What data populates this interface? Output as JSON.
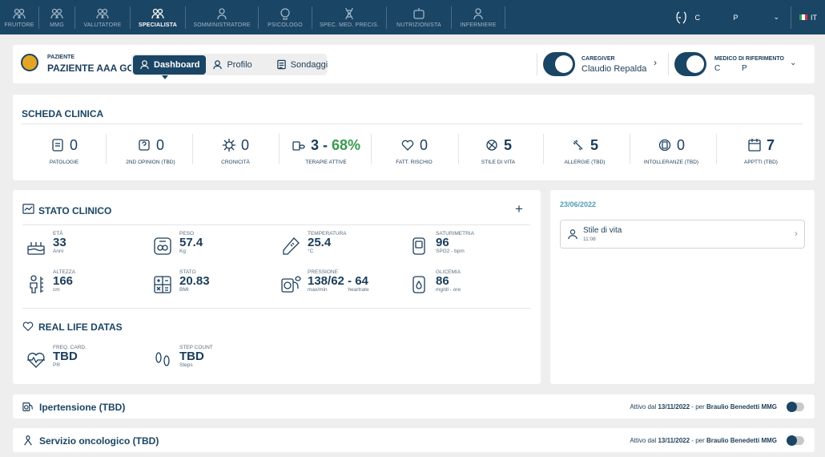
{
  "nav": {
    "items": [
      {
        "label": "FRUITORE",
        "icon": "group-icon"
      },
      {
        "label": "MMG",
        "icon": "doctors-icon"
      },
      {
        "label": "VALUTATORE",
        "icon": "evaluator-icon"
      },
      {
        "label": "SPECIALISTA",
        "icon": "specialist-icon",
        "active": true
      },
      {
        "label": "SOMMINISTRATORE",
        "icon": "nurse-icon"
      },
      {
        "label": "PSICOLOGO",
        "icon": "psychologist-icon"
      },
      {
        "label": "SPEC. MED. PRECIS.",
        "icon": "dna-icon"
      },
      {
        "label": "NUTRIZIONISTA",
        "icon": "nutrition-icon"
      },
      {
        "label": "INFERMIERE",
        "icon": "nurse-icon"
      }
    ],
    "user_first": "C",
    "user_last": "P",
    "lang": "IT"
  },
  "patient": {
    "label": "PAZIENTE",
    "name": "PAZIENTE AAA GOLD",
    "tabs": [
      "Dashboard",
      "Profilo",
      "Sondaggi"
    ],
    "caregiver_label": "CAREGIVER",
    "caregiver_name": "Claudio Repalda",
    "medico_label": "MEDICO DI RIFERIMENTO",
    "medico_first": "C",
    "medico_last": "P"
  },
  "scheda": {
    "title": "SCHEDA CLINICA",
    "stats": [
      {
        "label": "PATOLOGIE",
        "value": "0",
        "bold": false,
        "icon": "clipboard-icon"
      },
      {
        "label": "2ND OPINION (TBD)",
        "value": "0",
        "bold": false,
        "icon": "second-opinion-icon"
      },
      {
        "label": "CRONICITÀ",
        "value": "0",
        "bold": false,
        "icon": "virus-icon"
      },
      {
        "label": "TERAPIE ATTIVE",
        "value": "3 - ",
        "value2": "68%",
        "bold": true,
        "icon": "pills-icon"
      },
      {
        "label": "FATT. RISCHIO",
        "value": "0",
        "bold": false,
        "icon": "heart-risk-icon"
      },
      {
        "label": "STILE DI VITA",
        "value": "5",
        "bold": true,
        "icon": "lifestyle-icon"
      },
      {
        "label": "ALLERGIE (TBD)",
        "value": "5",
        "bold": true,
        "icon": "allergy-icon"
      },
      {
        "label": "INTOLLERANZE (TBD)",
        "value": "0",
        "bold": false,
        "icon": "intolerance-icon"
      },
      {
        "label": "APPTTI (TBD)",
        "value": "7",
        "bold": true,
        "icon": "calendar-icon"
      }
    ]
  },
  "stato": {
    "title": "STATO CLINICO",
    "add": "+",
    "metrics": [
      {
        "label": "ETÀ",
        "value": "33",
        "unit": "Anni",
        "icon": "cake-icon"
      },
      {
        "label": "PESO",
        "value": "57.4",
        "unit": "Kg",
        "icon": "scale-icon"
      },
      {
        "label": "TEMPERATURA",
        "value": "25.4",
        "unit": "°C",
        "icon": "thermometer-icon"
      },
      {
        "label": "SATURIMETRIA",
        "value": "96",
        "unit": "SPO2 - bpm",
        "icon": "oximeter-icon"
      },
      {
        "label": "ALTEZZA",
        "value": "166",
        "unit": "cm",
        "icon": "height-icon"
      },
      {
        "label": "STATO",
        "value": "20.83",
        "unit": "BMI",
        "icon": "calculator-icon"
      },
      {
        "label": "PRESSIONE",
        "value": "138/62 - 64",
        "unit": "max/min",
        "unit2": "heartrate",
        "icon": "blood-pressure-icon"
      },
      {
        "label": "GLICEMIA",
        "value": "86",
        "unit": "mg/dl - ore",
        "icon": "glucose-icon"
      }
    ],
    "real_title": "REAL LIFE DATAS",
    "real": [
      {
        "label": "FREQ. CARD.",
        "value": "TBD",
        "unit": "PR",
        "icon": "heartbeat-icon"
      },
      {
        "label": "STEP COUNT",
        "value": "TBD",
        "unit": "Steps",
        "icon": "footsteps-icon"
      }
    ]
  },
  "timeline": {
    "date": "23/06/2022",
    "item_title": "Stile di vita",
    "item_time": "11:08"
  },
  "services": [
    {
      "name": "Ipertensione (TBD)",
      "prefix": "Attivo dal ",
      "date": "13/11/2022",
      "mid": " - per ",
      "doctor": "Braulio Benedetti MMG",
      "icon": "hypertension-icon"
    },
    {
      "name": "Servizio oncologico (TBD)",
      "prefix": "Attivo dal ",
      "date": "13/11/2022",
      "mid": " - per ",
      "doctor": "Braulio Benedetti MMG",
      "icon": "oncology-icon"
    }
  ]
}
